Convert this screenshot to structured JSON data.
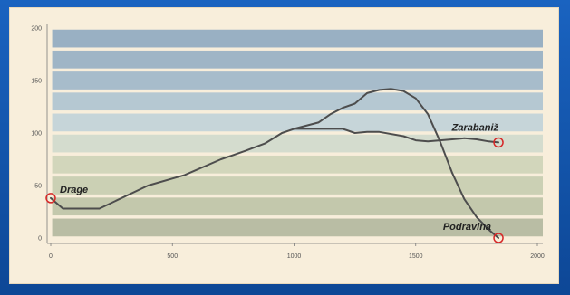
{
  "chart_data": {
    "type": "line",
    "title": "",
    "xlabel": "",
    "ylabel": "",
    "xlim": [
      0,
      2000
    ],
    "ylim": [
      0,
      200
    ],
    "x_ticks": [
      "0",
      "500",
      "1000",
      "1500",
      "2000"
    ],
    "y_ticks": [
      "0",
      "50",
      "100",
      "150",
      "200"
    ],
    "band_colors": [
      "#b9bda4",
      "#c3c8ac",
      "#cbd0b4",
      "#d2d6bb",
      "#d4dcce",
      "#c6d5d9",
      "#b5c8d2",
      "#a7bccb",
      "#9fb5c6",
      "#99b0c3"
    ],
    "line_color": "#4d4d4d",
    "marker_color": "#d62828",
    "series": [
      {
        "values": [
          [
            0,
            38
          ],
          [
            50,
            28
          ],
          [
            200,
            28
          ],
          [
            400,
            50
          ],
          [
            550,
            60
          ],
          [
            700,
            75
          ],
          [
            800,
            83
          ],
          [
            880,
            90
          ],
          [
            950,
            100
          ],
          [
            1000,
            104
          ],
          [
            1100,
            110
          ],
          [
            1150,
            118
          ],
          [
            1200,
            124
          ],
          [
            1250,
            128
          ],
          [
            1300,
            138
          ],
          [
            1350,
            141
          ],
          [
            1400,
            142
          ],
          [
            1450,
            140
          ],
          [
            1500,
            133
          ],
          [
            1550,
            118
          ],
          [
            1600,
            92
          ],
          [
            1650,
            62
          ],
          [
            1700,
            37
          ],
          [
            1750,
            20
          ],
          [
            1800,
            8
          ],
          [
            1840,
            0
          ]
        ]
      },
      {
        "values": [
          [
            1000,
            104
          ],
          [
            1100,
            104
          ],
          [
            1200,
            104
          ],
          [
            1250,
            100
          ],
          [
            1300,
            101
          ],
          [
            1350,
            101
          ],
          [
            1450,
            97
          ],
          [
            1500,
            93
          ],
          [
            1550,
            92
          ],
          [
            1600,
            93
          ],
          [
            1650,
            94
          ],
          [
            1700,
            95
          ],
          [
            1750,
            94
          ],
          [
            1800,
            92
          ],
          [
            1840,
            91
          ]
        ]
      }
    ],
    "annotations": [
      {
        "text": "Drage",
        "x": 0,
        "y": 38
      },
      {
        "text": "Zarabaniž",
        "x": 1840,
        "y": 91
      },
      {
        "text": "Podravina",
        "x": 1840,
        "y": 0
      }
    ]
  }
}
